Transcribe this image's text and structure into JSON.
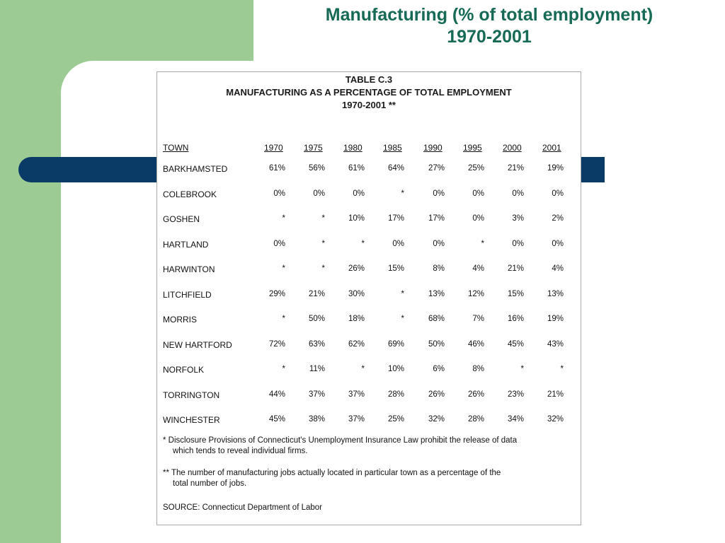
{
  "slide": {
    "title_line1": "Manufacturing (% of total employment)",
    "title_line2": "1970-2001"
  },
  "table": {
    "heading1": "TABLE C.3",
    "heading2": "MANUFACTURING AS A PERCENTAGE OF TOTAL EMPLOYMENT",
    "heading3": "1970-2001 **",
    "town_header": "TOWN",
    "years": [
      "1970",
      "1975",
      "1980",
      "1985",
      "1990",
      "1995",
      "2000",
      "2001"
    ],
    "rows": [
      {
        "town": "BARKHAMSTED",
        "values": [
          "61%",
          "56%",
          "61%",
          "64%",
          "27%",
          "25%",
          "21%",
          "19%"
        ]
      },
      {
        "town": "COLEBROOK",
        "values": [
          "0%",
          "0%",
          "0%",
          "*",
          "0%",
          "0%",
          "0%",
          "0%"
        ]
      },
      {
        "town": "GOSHEN",
        "values": [
          "*",
          "*",
          "10%",
          "17%",
          "17%",
          "0%",
          "3%",
          "2%"
        ]
      },
      {
        "town": "HARTLAND",
        "values": [
          "0%",
          "*",
          "*",
          "0%",
          "0%",
          "*",
          "0%",
          "0%"
        ]
      },
      {
        "town": "HARWINTON",
        "values": [
          "*",
          "*",
          "26%",
          "15%",
          "8%",
          "4%",
          "21%",
          "4%"
        ]
      },
      {
        "town": "LITCHFIELD",
        "values": [
          "29%",
          "21%",
          "30%",
          "*",
          "13%",
          "12%",
          "15%",
          "13%"
        ]
      },
      {
        "town": "MORRIS",
        "values": [
          "*",
          "50%",
          "18%",
          "*",
          "68%",
          "7%",
          "16%",
          "19%"
        ]
      },
      {
        "town": "NEW HARTFORD",
        "values": [
          "72%",
          "63%",
          "62%",
          "69%",
          "50%",
          "46%",
          "45%",
          "43%"
        ]
      },
      {
        "town": "NORFOLK",
        "values": [
          "*",
          "11%",
          "*",
          "10%",
          "6%",
          "8%",
          "*",
          "*"
        ]
      },
      {
        "town": "TORRINGTON",
        "values": [
          "44%",
          "37%",
          "37%",
          "28%",
          "26%",
          "26%",
          "23%",
          "21%"
        ]
      },
      {
        "town": "WINCHESTER",
        "values": [
          "45%",
          "38%",
          "37%",
          "25%",
          "32%",
          "28%",
          "34%",
          "32%"
        ]
      }
    ],
    "footnote1_line1": "* Disclosure Provisions of Connecticut's Unemployment Insurance Law prohibit the release of data",
    "footnote1_line2": "which tends to reveal individual firms.",
    "footnote2_line1": "** The number of manufacturing jobs actually located in particular town as a percentage of the",
    "footnote2_line2": "total number of jobs.",
    "source": "SOURCE: Connecticut Department of Labor"
  }
}
